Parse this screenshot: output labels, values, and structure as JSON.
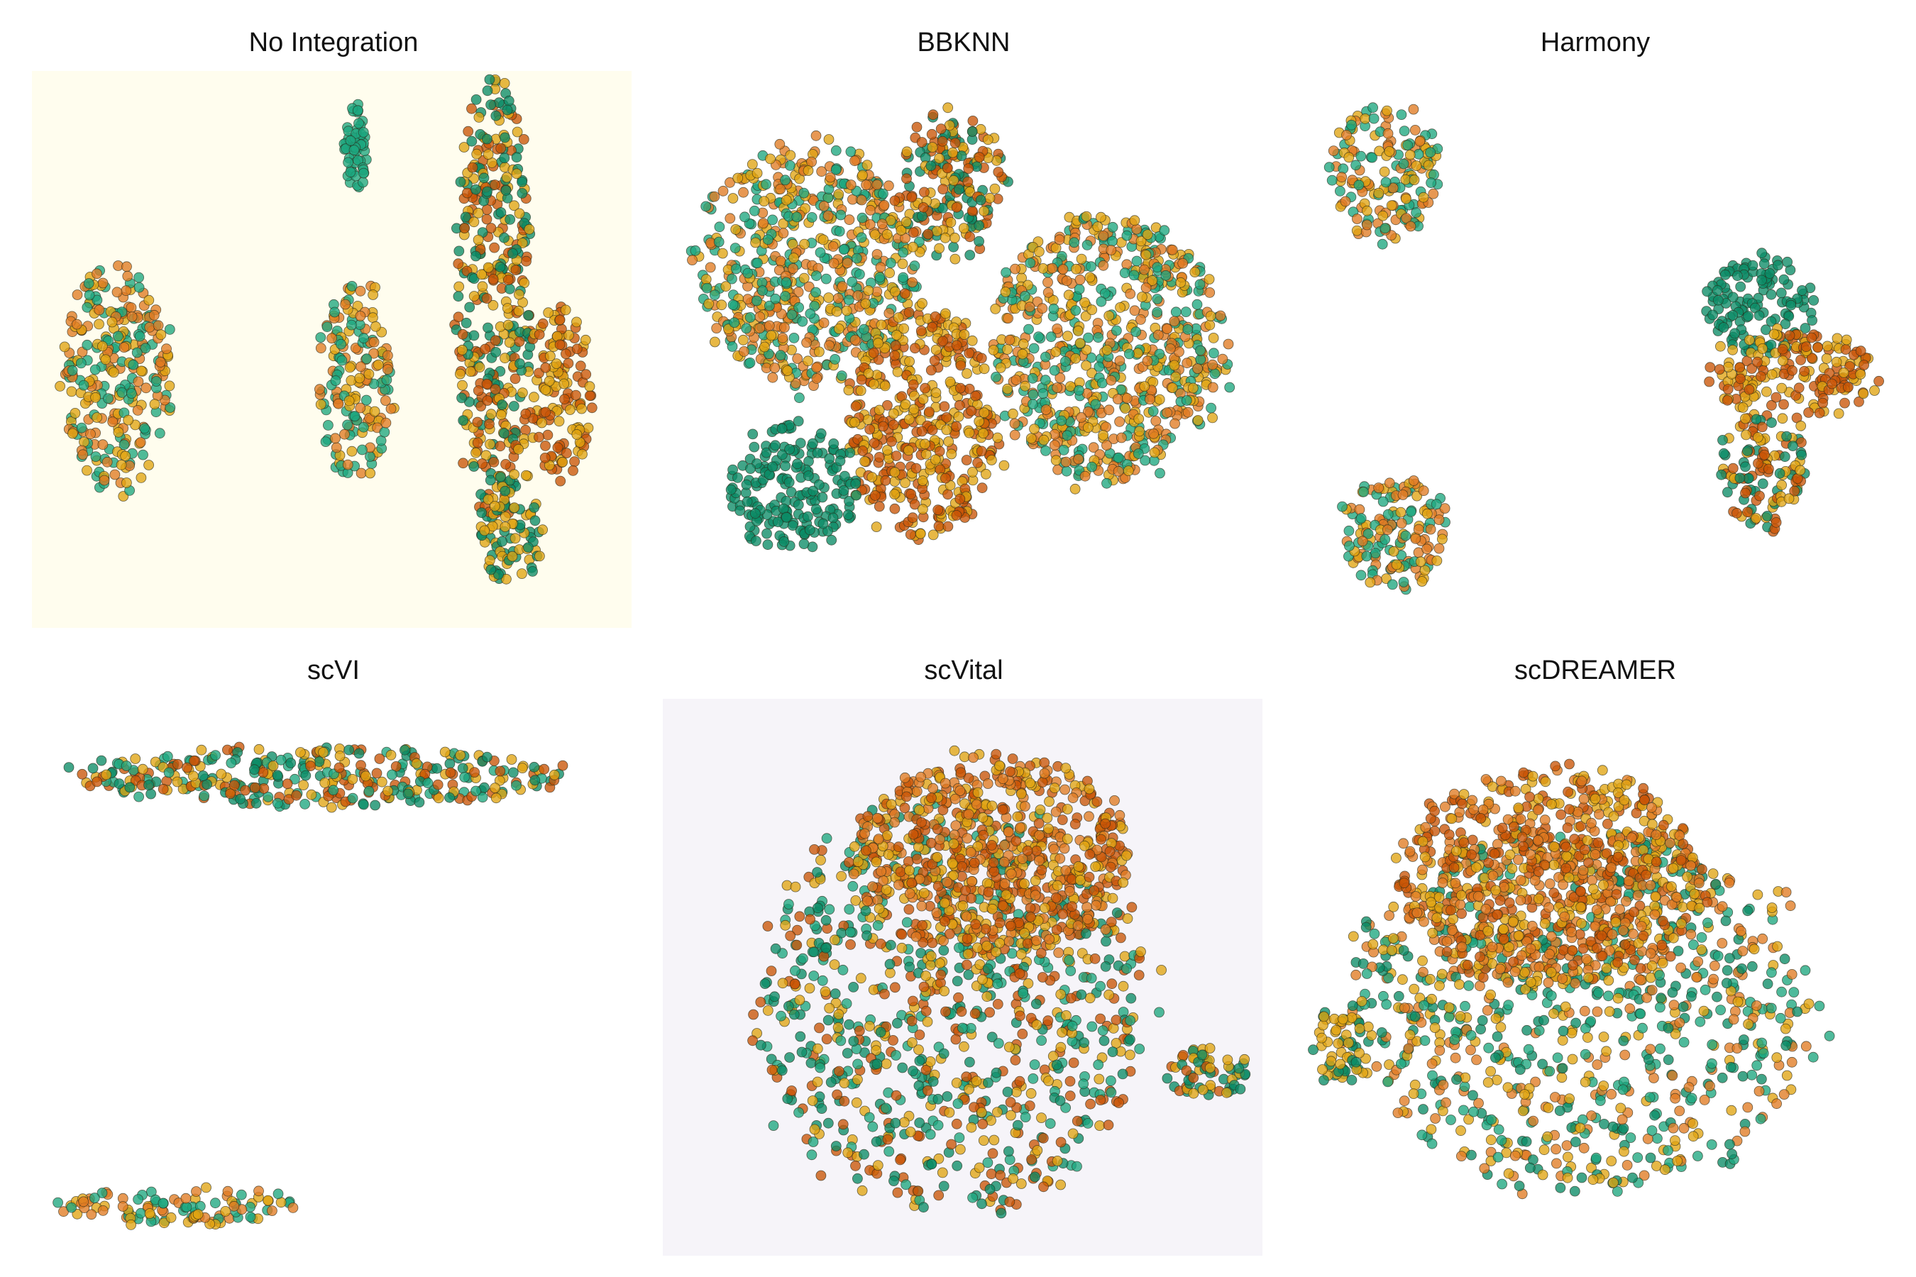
{
  "colors": {
    "teal": "#1ea67f",
    "dark_green": "#0c8c66",
    "orange": "#e07b22",
    "burnt_orange": "#c95406",
    "gold": "#e0a412",
    "outline": "#2b2b1a"
  },
  "chart_data": [
    {
      "type": "scatter",
      "title": "No Integration",
      "background": "#fffdee",
      "axes_visible": false,
      "clusters": [
        {
          "x": 0.14,
          "y": 0.55,
          "rx": 0.1,
          "ry": 0.23,
          "mix": [
            "orange",
            "teal",
            "gold"
          ]
        },
        {
          "x": 0.54,
          "y": 0.56,
          "rx": 0.07,
          "ry": 0.2,
          "mix": [
            "orange",
            "gold",
            "teal"
          ]
        },
        {
          "x": 0.54,
          "y": 0.14,
          "rx": 0.02,
          "ry": 0.09,
          "mix": [
            "teal"
          ]
        },
        {
          "x": 0.77,
          "y": 0.4,
          "rx": 0.07,
          "ry": 0.45,
          "mix": [
            "dark_green",
            "burnt_orange",
            "gold"
          ]
        },
        {
          "x": 0.88,
          "y": 0.58,
          "rx": 0.06,
          "ry": 0.18,
          "mix": [
            "burnt_orange",
            "gold"
          ]
        },
        {
          "x": 0.8,
          "y": 0.82,
          "rx": 0.06,
          "ry": 0.12,
          "mix": [
            "gold",
            "dark_green"
          ]
        }
      ]
    },
    {
      "type": "scatter",
      "title": "BBKNN",
      "background": "#ffffff",
      "axes_visible": false,
      "clusters": [
        {
          "x": 0.24,
          "y": 0.35,
          "rx": 0.21,
          "ry": 0.24,
          "mix": [
            "gold",
            "orange",
            "teal"
          ]
        },
        {
          "x": 0.74,
          "y": 0.5,
          "rx": 0.22,
          "ry": 0.27,
          "mix": [
            "orange",
            "teal",
            "gold"
          ]
        },
        {
          "x": 0.43,
          "y": 0.63,
          "rx": 0.14,
          "ry": 0.24,
          "mix": [
            "burnt_orange",
            "gold"
          ]
        },
        {
          "x": 0.22,
          "y": 0.75,
          "rx": 0.12,
          "ry": 0.13,
          "mix": [
            "dark_green"
          ]
        },
        {
          "x": 0.48,
          "y": 0.2,
          "rx": 0.1,
          "ry": 0.15,
          "mix": [
            "gold",
            "dark_green",
            "burnt_orange"
          ]
        }
      ]
    },
    {
      "type": "scatter",
      "title": "Harmony",
      "background": "#ffffff",
      "axes_visible": false,
      "clusters": [
        {
          "x": 0.15,
          "y": 0.18,
          "rx": 0.1,
          "ry": 0.14,
          "mix": [
            "teal",
            "orange",
            "gold"
          ]
        },
        {
          "x": 0.17,
          "y": 0.83,
          "rx": 0.1,
          "ry": 0.12,
          "mix": [
            "teal",
            "orange",
            "gold"
          ]
        },
        {
          "x": 0.78,
          "y": 0.42,
          "rx": 0.1,
          "ry": 0.1,
          "mix": [
            "dark_green"
          ]
        },
        {
          "x": 0.83,
          "y": 0.55,
          "rx": 0.16,
          "ry": 0.09,
          "mix": [
            "burnt_orange",
            "gold"
          ]
        },
        {
          "x": 0.78,
          "y": 0.72,
          "rx": 0.08,
          "ry": 0.12,
          "mix": [
            "gold",
            "dark_green",
            "burnt_orange"
          ]
        }
      ]
    },
    {
      "type": "scatter",
      "title": "scVI",
      "background": "#ffffff",
      "axes_visible": false,
      "clusters": [
        {
          "x": 0.48,
          "y": 0.14,
          "rx": 0.46,
          "ry": 0.06,
          "mix": [
            "burnt_orange",
            "gold",
            "teal",
            "dark_green"
          ]
        },
        {
          "x": 0.24,
          "y": 0.91,
          "rx": 0.22,
          "ry": 0.04,
          "mix": [
            "gold",
            "teal",
            "orange"
          ]
        }
      ]
    },
    {
      "type": "scatter",
      "title": "scVital",
      "background": "#f6f4f9",
      "axes_visible": false,
      "clusters": [
        {
          "x": 0.48,
          "y": 0.55,
          "rx": 0.37,
          "ry": 0.41,
          "mix": [
            "teal",
            "gold",
            "dark_green",
            "burnt_orange"
          ]
        },
        {
          "x": 0.55,
          "y": 0.28,
          "rx": 0.26,
          "ry": 0.2,
          "mix": [
            "burnt_orange",
            "orange",
            "gold"
          ]
        },
        {
          "x": 0.91,
          "y": 0.67,
          "rx": 0.08,
          "ry": 0.05,
          "mix": [
            "gold",
            "dark_green",
            "burnt_orange"
          ]
        }
      ]
    },
    {
      "type": "scatter",
      "title": "scDREAMER",
      "background": "#ffffff",
      "axes_visible": false,
      "clusters": [
        {
          "x": 0.48,
          "y": 0.55,
          "rx": 0.43,
          "ry": 0.37,
          "mix": [
            "teal",
            "gold",
            "dark_green",
            "orange"
          ]
        },
        {
          "x": 0.43,
          "y": 0.32,
          "rx": 0.28,
          "ry": 0.22,
          "mix": [
            "orange",
            "burnt_orange",
            "gold"
          ]
        },
        {
          "x": 0.08,
          "y": 0.62,
          "rx": 0.06,
          "ry": 0.08,
          "mix": [
            "gold",
            "dark_green"
          ]
        }
      ]
    }
  ]
}
